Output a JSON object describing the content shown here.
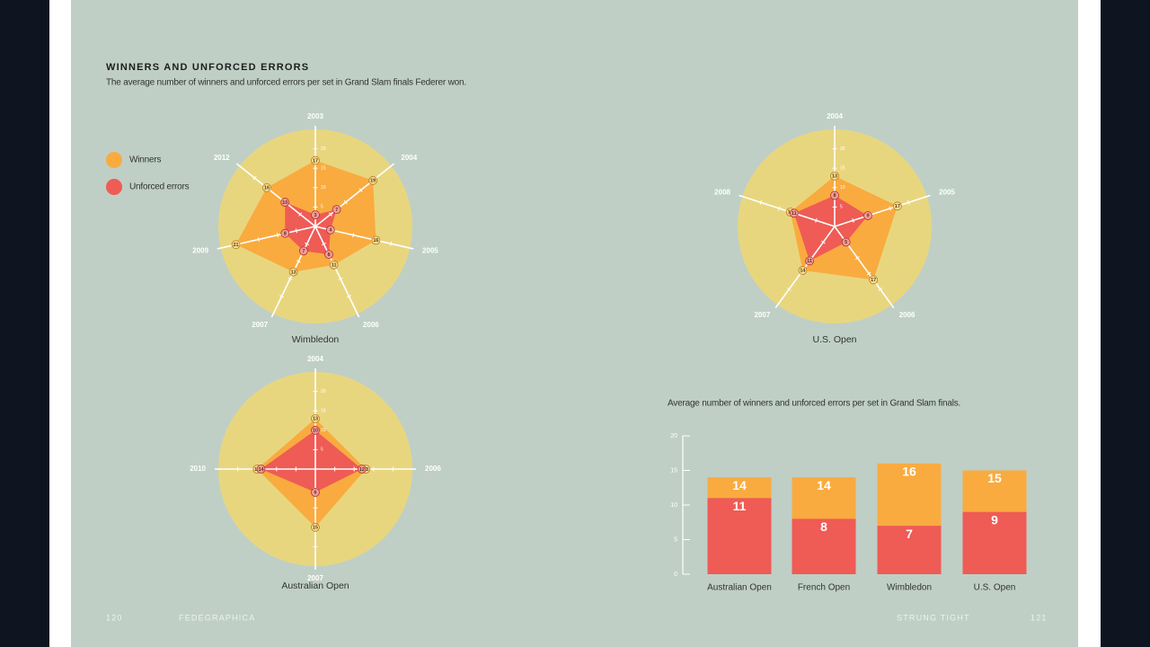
{
  "header": {
    "title": "WINNERS AND UNFORCED ERRORS",
    "subtitle": "The average number of winners and unforced errors per set in Grand Slam finals Federer won."
  },
  "chart_data": [
    {
      "type": "radar",
      "title": "Wimbledon",
      "categories": [
        "2003",
        "2004",
        "2005",
        "2006",
        "2007",
        "2009",
        "2012"
      ],
      "series": [
        {
          "name": "Winners",
          "color": "#f9ab3f",
          "values": [
            17,
            19,
            16,
            11,
            13,
            21,
            16
          ]
        },
        {
          "name": "Unforced errors",
          "color": "#ef5b55",
          "values": [
            3,
            7,
            4,
            8,
            7,
            8,
            10
          ]
        }
      ],
      "rlim": [
        0,
        25
      ],
      "rticks": [
        5,
        10,
        15,
        20
      ],
      "background": "#e8d67f"
    },
    {
      "type": "radar",
      "title": "U.S. Open",
      "categories": [
        "2004",
        "2005",
        "2006",
        "2007",
        "2008"
      ],
      "series": [
        {
          "color": "#f9ab3f",
          "values": [
            13,
            17,
            17,
            14,
            12
          ]
        },
        {
          "color": "#ef5b55",
          "values": [
            8,
            9,
            5,
            11,
            11
          ]
        }
      ],
      "rlim": [
        0,
        25
      ],
      "rticks": [
        5,
        10,
        15,
        20
      ],
      "background": "#e8d67f"
    },
    {
      "type": "radar",
      "title": "Australian Open",
      "categories": [
        "2004",
        "2006",
        "2007",
        "2010"
      ],
      "series": [
        {
          "color": "#f9ab3f",
          "values": [
            13,
            13,
            15,
            15
          ]
        },
        {
          "color": "#ef5b55",
          "values": [
            10,
            12,
            6,
            14
          ]
        }
      ],
      "rlim": [
        0,
        25
      ],
      "rticks": [
        5,
        10,
        15,
        20
      ],
      "background": "#e8d67f"
    },
    {
      "type": "bar",
      "subtitle": "Average number of winners and unforced errors per set in Grand Slam finals.",
      "categories": [
        "Australian Open",
        "French Open",
        "Wimbledon",
        "U.S. Open"
      ],
      "series": [
        {
          "color": "#f9ab3f",
          "values": [
            14,
            14,
            16,
            15
          ]
        },
        {
          "color": "#ef5b55",
          "values": [
            11,
            8,
            7,
            9
          ]
        }
      ],
      "ylim": [
        0,
        20
      ],
      "yticks": [
        0,
        5,
        10,
        15,
        20
      ]
    }
  ],
  "footer": {
    "left_page": "120",
    "left_title": "FEDEGRAPHICA",
    "right_title": "STRUNG TIGHT",
    "right_page": "121"
  }
}
